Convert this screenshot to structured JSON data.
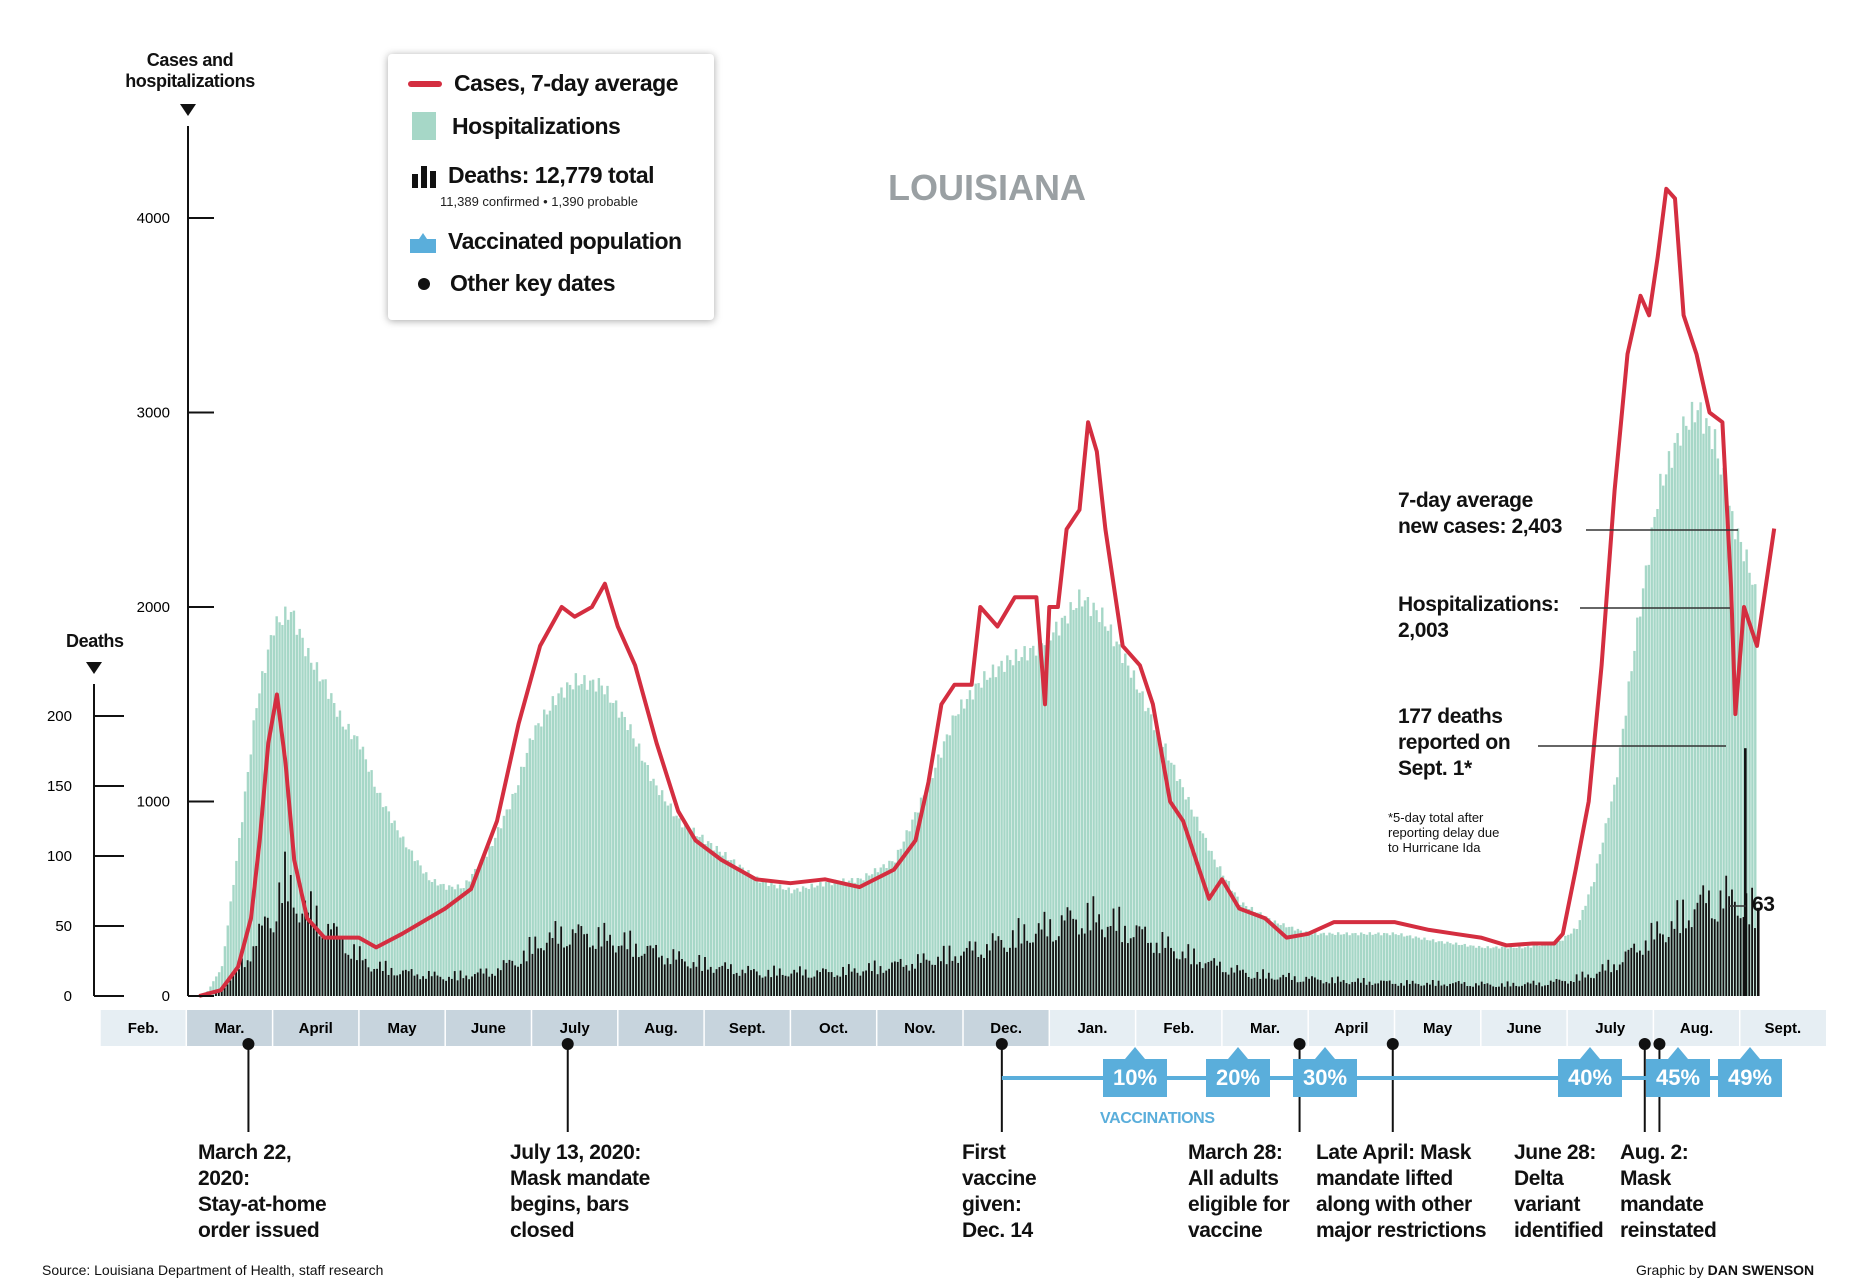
{
  "title": "LOUISIANA",
  "cases_axis_label_1": "Cases and",
  "cases_axis_label_2": "hospitalizations",
  "deaths_axis_label": "Deaths",
  "legend": {
    "cases": "Cases, 7-day average",
    "hospitalizations": "Hospitalizations",
    "deaths": "Deaths: 12,779 total",
    "deaths_sub": "11,389 confirmed • 1,390 probable",
    "vaccinated": "Vaccinated population",
    "key_dates": "Other key dates"
  },
  "colors": {
    "cases": "#d42e40",
    "hospitalizations": "#a6d7c7",
    "deaths": "#111111",
    "vaccinated": "#5aaedb",
    "month_band_a": "#e6eef3",
    "month_band_b": "#c7d4dd"
  },
  "annotations": {
    "avg_cases_1": "7-day average",
    "avg_cases_2": "new cases: 2,403",
    "hosp_1": "Hospitalizations:",
    "hosp_2": "2,003",
    "deaths_1": "177 deaths",
    "deaths_2": "reported on",
    "deaths_3": "Sept. 1*",
    "footnote_1": "*5-day total after",
    "footnote_2": "reporting delay due",
    "footnote_3": "to Hurricane Ida",
    "latest_deaths": "63"
  },
  "vaccinations_label": "VACCINATIONS",
  "vaccination_milestones": [
    "10%",
    "20%",
    "30%",
    "40%",
    "45%",
    "49%"
  ],
  "key_dates": [
    {
      "lines": [
        "March 22,",
        "2020:",
        "Stay-at-home",
        "order issued"
      ]
    },
    {
      "lines": [
        "July 13, 2020:",
        "Mask mandate",
        "begins, bars",
        "closed"
      ]
    },
    {
      "lines": [
        "First",
        "vaccine",
        "given:",
        "Dec. 14"
      ]
    },
    {
      "lines": [
        "March 28:",
        "All adults",
        "eligible for",
        "vaccine"
      ]
    },
    {
      "lines": [
        "Late April: Mask",
        "mandate lifted",
        "along with other",
        "major restrictions"
      ]
    },
    {
      "lines": [
        "June 28:",
        "Delta",
        "variant",
        "identified"
      ]
    },
    {
      "lines": [
        "Aug. 2:",
        "Mask",
        "mandate",
        "reinstated"
      ]
    }
  ],
  "source": "Source: Louisiana Department of Health, staff research",
  "credit_prefix": "Graphic by ",
  "credit_name": "DAN SWENSON",
  "chart_data": {
    "type": "area",
    "title": "LOUISIANA",
    "months": [
      "Feb.",
      "Mar.",
      "April",
      "May",
      "June",
      "July",
      "Aug.",
      "Sept.",
      "Oct.",
      "Nov.",
      "Dec.",
      "Jan.",
      "Feb.",
      "Mar.",
      "April",
      "May",
      "June",
      "July",
      "Aug.",
      "Sept."
    ],
    "x_unit": "month index from Feb. 2020 (0 = start of Feb. 2020)",
    "cases_axis": {
      "label": "Cases and hospitalizations",
      "ylim": [
        0,
        4000
      ],
      "ticks": [
        0,
        1000,
        2000,
        3000,
        4000
      ]
    },
    "deaths_axis": {
      "label": "Deaths",
      "ylim": [
        0,
        200
      ],
      "ticks": [
        0,
        50,
        100,
        150,
        200
      ]
    },
    "series": [
      {
        "name": "Cases, 7-day average",
        "kind": "line",
        "points": [
          [
            1.15,
            0
          ],
          [
            1.4,
            30
          ],
          [
            1.6,
            150
          ],
          [
            1.75,
            400
          ],
          [
            1.85,
            800
          ],
          [
            1.95,
            1300
          ],
          [
            2.05,
            1550
          ],
          [
            2.15,
            1200
          ],
          [
            2.25,
            700
          ],
          [
            2.4,
            400
          ],
          [
            2.6,
            300
          ],
          [
            3.0,
            300
          ],
          [
            3.2,
            250
          ],
          [
            3.5,
            320
          ],
          [
            4.0,
            450
          ],
          [
            4.3,
            550
          ],
          [
            4.6,
            900
          ],
          [
            4.85,
            1400
          ],
          [
            5.1,
            1800
          ],
          [
            5.35,
            2000
          ],
          [
            5.5,
            1950
          ],
          [
            5.7,
            2000
          ],
          [
            5.85,
            2120
          ],
          [
            6.0,
            1900
          ],
          [
            6.2,
            1700
          ],
          [
            6.45,
            1300
          ],
          [
            6.7,
            950
          ],
          [
            6.9,
            800
          ],
          [
            7.2,
            700
          ],
          [
            7.6,
            600
          ],
          [
            8.0,
            580
          ],
          [
            8.4,
            600
          ],
          [
            8.8,
            560
          ],
          [
            9.2,
            650
          ],
          [
            9.45,
            800
          ],
          [
            9.6,
            1100
          ],
          [
            9.75,
            1500
          ],
          [
            9.9,
            1600
          ],
          [
            10.1,
            1600
          ],
          [
            10.2,
            2000
          ],
          [
            10.4,
            1900
          ],
          [
            10.6,
            2050
          ],
          [
            10.85,
            2050
          ],
          [
            10.95,
            1500
          ],
          [
            11.0,
            2000
          ],
          [
            11.1,
            2000
          ],
          [
            11.2,
            2400
          ],
          [
            11.35,
            2500
          ],
          [
            11.45,
            2950
          ],
          [
            11.55,
            2800
          ],
          [
            11.65,
            2400
          ],
          [
            11.85,
            1800
          ],
          [
            12.05,
            1700
          ],
          [
            12.2,
            1500
          ],
          [
            12.4,
            1000
          ],
          [
            12.55,
            900
          ],
          [
            12.7,
            700
          ],
          [
            12.85,
            500
          ],
          [
            13.0,
            600
          ],
          [
            13.2,
            450
          ],
          [
            13.5,
            400
          ],
          [
            13.75,
            300
          ],
          [
            14.0,
            320
          ],
          [
            14.3,
            380
          ],
          [
            14.7,
            380
          ],
          [
            15.0,
            380
          ],
          [
            15.4,
            340
          ],
          [
            15.7,
            320
          ],
          [
            16.0,
            300
          ],
          [
            16.3,
            260
          ],
          [
            16.6,
            270
          ],
          [
            16.85,
            270
          ],
          [
            16.95,
            320
          ],
          [
            17.1,
            650
          ],
          [
            17.25,
            1000
          ],
          [
            17.4,
            1700
          ],
          [
            17.55,
            2600
          ],
          [
            17.7,
            3300
          ],
          [
            17.85,
            3600
          ],
          [
            17.95,
            3500
          ],
          [
            18.05,
            3800
          ],
          [
            18.15,
            4150
          ],
          [
            18.25,
            4100
          ],
          [
            18.35,
            3500
          ],
          [
            18.5,
            3300
          ],
          [
            18.65,
            3000
          ],
          [
            18.8,
            2950
          ],
          [
            18.9,
            2100
          ],
          [
            18.95,
            1450
          ],
          [
            19.05,
            2000
          ],
          [
            19.2,
            1800
          ],
          [
            19.4,
            2403
          ]
        ]
      },
      {
        "name": "Hospitalizations",
        "kind": "area",
        "points": [
          [
            1.2,
            0
          ],
          [
            1.4,
            150
          ],
          [
            1.6,
            800
          ],
          [
            1.8,
            1500
          ],
          [
            2.0,
            1900
          ],
          [
            2.2,
            1980
          ],
          [
            2.4,
            1750
          ],
          [
            2.6,
            1600
          ],
          [
            2.8,
            1400
          ],
          [
            3.0,
            1300
          ],
          [
            3.2,
            1050
          ],
          [
            3.5,
            800
          ],
          [
            3.8,
            600
          ],
          [
            4.0,
            560
          ],
          [
            4.2,
            560
          ],
          [
            4.5,
            750
          ],
          [
            4.8,
            1050
          ],
          [
            5.0,
            1350
          ],
          [
            5.3,
            1550
          ],
          [
            5.5,
            1620
          ],
          [
            5.8,
            1600
          ],
          [
            6.1,
            1400
          ],
          [
            6.4,
            1100
          ],
          [
            6.7,
            900
          ],
          [
            7.0,
            800
          ],
          [
            7.3,
            700
          ],
          [
            7.6,
            600
          ],
          [
            8.0,
            540
          ],
          [
            8.4,
            580
          ],
          [
            8.8,
            600
          ],
          [
            9.2,
            700
          ],
          [
            9.6,
            1100
          ],
          [
            9.9,
            1450
          ],
          [
            10.2,
            1620
          ],
          [
            10.5,
            1720
          ],
          [
            10.8,
            1780
          ],
          [
            11.1,
            1900
          ],
          [
            11.35,
            2050
          ],
          [
            11.6,
            1950
          ],
          [
            11.9,
            1700
          ],
          [
            12.2,
            1400
          ],
          [
            12.5,
            1100
          ],
          [
            12.7,
            900
          ],
          [
            12.9,
            700
          ],
          [
            13.2,
            480
          ],
          [
            13.6,
            380
          ],
          [
            14.0,
            320
          ],
          [
            14.5,
            320
          ],
          [
            15.0,
            320
          ],
          [
            15.5,
            280
          ],
          [
            16.0,
            250
          ],
          [
            16.5,
            250
          ],
          [
            16.9,
            280
          ],
          [
            17.1,
            350
          ],
          [
            17.3,
            600
          ],
          [
            17.55,
            1100
          ],
          [
            17.8,
            1900
          ],
          [
            18.05,
            2600
          ],
          [
            18.3,
            2900
          ],
          [
            18.5,
            3020
          ],
          [
            18.7,
            2850
          ],
          [
            18.9,
            2450
          ],
          [
            19.1,
            2200
          ],
          [
            19.2,
            2003
          ]
        ]
      },
      {
        "name": "Deaths",
        "kind": "bar",
        "daily_envelope": [
          [
            1.3,
            0
          ],
          [
            1.5,
            10
          ],
          [
            1.7,
            25
          ],
          [
            1.9,
            45
          ],
          [
            2.0,
            50
          ],
          [
            2.1,
            75
          ],
          [
            2.25,
            60
          ],
          [
            2.5,
            50
          ],
          [
            2.8,
            35
          ],
          [
            3.1,
            20
          ],
          [
            3.5,
            15
          ],
          [
            4.0,
            12
          ],
          [
            4.5,
            15
          ],
          [
            4.8,
            22
          ],
          [
            5.1,
            35
          ],
          [
            5.4,
            40
          ],
          [
            5.7,
            38
          ],
          [
            6.0,
            35
          ],
          [
            6.4,
            28
          ],
          [
            6.8,
            22
          ],
          [
            7.2,
            18
          ],
          [
            7.6,
            15
          ],
          [
            8.0,
            15
          ],
          [
            8.5,
            15
          ],
          [
            9.0,
            18
          ],
          [
            9.5,
            22
          ],
          [
            10.0,
            28
          ],
          [
            10.3,
            32
          ],
          [
            10.6,
            38
          ],
          [
            10.9,
            42
          ],
          [
            11.2,
            48
          ],
          [
            11.5,
            50
          ],
          [
            11.8,
            45
          ],
          [
            12.1,
            38
          ],
          [
            12.5,
            28
          ],
          [
            12.9,
            20
          ],
          [
            13.3,
            14
          ],
          [
            13.7,
            12
          ],
          [
            14.2,
            10
          ],
          [
            14.7,
            9
          ],
          [
            15.2,
            8
          ],
          [
            15.7,
            8
          ],
          [
            16.2,
            7
          ],
          [
            16.7,
            8
          ],
          [
            17.0,
            10
          ],
          [
            17.3,
            14
          ],
          [
            17.6,
            22
          ],
          [
            17.9,
            35
          ],
          [
            18.2,
            45
          ],
          [
            18.5,
            58
          ],
          [
            18.8,
            62
          ],
          [
            19.0,
            60
          ],
          [
            19.2,
            50
          ]
        ],
        "highlights": [
          {
            "label": "Sept. 1",
            "value": 177
          },
          {
            "label": "latest",
            "value": 63
          }
        ]
      }
    ],
    "vaccination_milestones": [
      {
        "label": "10%",
        "x": 11.9
      },
      {
        "label": "20%",
        "x": 12.95
      },
      {
        "label": "30%",
        "x": 13.45
      },
      {
        "label": "40%",
        "x": 17.55
      },
      {
        "label": "45%",
        "x": 18.0
      },
      {
        "label": "49%",
        "x": 18.85
      }
    ],
    "key_date_markers": [
      {
        "x": 1.72
      },
      {
        "x": 5.42
      },
      {
        "x": 10.45
      },
      {
        "x": 13.9
      },
      {
        "x": 14.98
      },
      {
        "x": 17.9
      },
      {
        "x": 18.07
      }
    ],
    "annotations": [
      {
        "text": "7-day average new cases: 2,403",
        "value": 2403
      },
      {
        "text": "Hospitalizations: 2,003",
        "value": 2003
      },
      {
        "text": "177 deaths reported on Sept. 1*",
        "value": 177
      },
      {
        "text": "63",
        "value": 63
      }
    ],
    "legend_position": "top-left",
    "grid": false
  }
}
